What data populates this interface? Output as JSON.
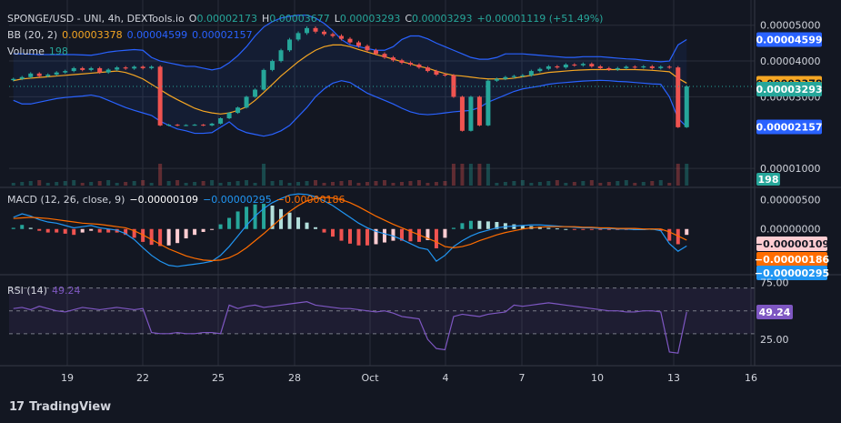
{
  "legend": {
    "symbol": "SPONGE/USD - UNI, 4h, DEXTools.io",
    "o_label": "O",
    "o": "0.00002173",
    "h_label": "H",
    "h": "0.00003677",
    "l_label": "L",
    "l": "0.00003293",
    "c_label": "C",
    "c": "0.00003293",
    "change": "+0.00001119 (+51.49%)",
    "bb_label": "BB (20, 2)",
    "bb_mid": "0.00003378",
    "bb_up": "0.00004599",
    "bb_low": "0.00002157",
    "vol_label": "Volume",
    "vol": "198",
    "macd_label": "MACD (12, 26, close, 9)",
    "macd_hist": "−0.00000109",
    "macd_line": "−0.00000295",
    "macd_signal": "−0.00000186",
    "rsi_label": "RSI (14)",
    "rsi": "49.24"
  },
  "brand": "TradingView",
  "colors": {
    "bg": "#131722",
    "up": "#26a69a",
    "down": "#ef5350",
    "band": "#2962ff",
    "basis": "#f5a623",
    "macd": "#2196f3",
    "signal": "#ff6d00",
    "rsi": "#7e57c2",
    "axis_text": "#d1d4dc",
    "grid": "#2a2e39"
  },
  "chart_data": [
    {
      "type": "candlestick",
      "title": "SPONGE/USD - UNI, 4h, DEXTools.io",
      "x_ticks": [
        "19",
        "22",
        "25",
        "28",
        "Oct",
        "4",
        "7",
        "10",
        "13",
        "16"
      ],
      "y_ticks": [
        "0.00005000",
        "0.00004000",
        "0.00003000",
        "0.00001000"
      ],
      "ylim": [
        5.2e-06,
        5.45e-05
      ],
      "price_labels": [
        {
          "name": "bb-upper",
          "value": "0.00004599"
        },
        {
          "name": "bb-basis",
          "value": "0.00003378"
        },
        {
          "name": "last-price",
          "value": "0.00003293"
        },
        {
          "name": "bb-lower",
          "value": "0.00002157"
        }
      ],
      "volume_label": "198",
      "close": [
        3.5e-05,
        3.55e-05,
        3.65e-05,
        3.58e-05,
        3.62e-05,
        3.68e-05,
        3.72e-05,
        3.8e-05,
        3.75e-05,
        3.8e-05,
        3.68e-05,
        3.76e-05,
        3.82e-05,
        3.79e-05,
        3.84e-05,
        3.8e-05,
        3.84e-05,
        2.2e-05,
        2.22e-05,
        2.2e-05,
        2.21e-05,
        2.22e-05,
        2.2e-05,
        2.25e-05,
        2.4e-05,
        2.55e-05,
        2.7e-05,
        3e-05,
        3.2e-05,
        3.75e-05,
        4e-05,
        4.3e-05,
        4.6e-05,
        4.78e-05,
        4.92e-05,
        4.82e-05,
        4.75e-05,
        4.7e-05,
        4.62e-05,
        4.52e-05,
        4.42e-05,
        4.3e-05,
        4.2e-05,
        4.1e-05,
        4.02e-05,
        3.95e-05,
        3.9e-05,
        3.82e-05,
        3.72e-05,
        3.62e-05,
        3.6e-05,
        3e-05,
        2.05e-05,
        3e-05,
        2.2e-05,
        3.45e-05,
        3.5e-05,
        3.55e-05,
        3.58e-05,
        3.6e-05,
        3.72e-05,
        3.78e-05,
        3.85e-05,
        3.82e-05,
        3.9e-05,
        3.88e-05,
        3.92e-05,
        3.85e-05,
        3.8e-05,
        3.76e-05,
        3.8e-05,
        3.84e-05,
        3.82e-05,
        3.85e-05,
        3.8e-05,
        3.84e-05,
        3.82e-05,
        2.15e-05,
        3.29e-05
      ],
      "bb_upper": [
        4.2e-05,
        4.2e-05,
        4.19e-05,
        4.18e-05,
        4.18e-05,
        4.18e-05,
        4.18e-05,
        4.18e-05,
        4.17e-05,
        4.16e-05,
        4.2e-05,
        4.25e-05,
        4.28e-05,
        4.3e-05,
        4.32e-05,
        4.3e-05,
        4.1e-05,
        4e-05,
        3.95e-05,
        3.9e-05,
        3.85e-05,
        3.85e-05,
        3.8e-05,
        3.75e-05,
        3.8e-05,
        3.95e-05,
        4.15e-05,
        4.4e-05,
        4.7e-05,
        4.95e-05,
        5.1e-05,
        5.2e-05,
        5.25e-05,
        5.28e-05,
        5.28e-05,
        5.2e-05,
        5.05e-05,
        4.85e-05,
        4.6e-05,
        4.45e-05,
        4.4e-05,
        4.35e-05,
        4.3e-05,
        4.3e-05,
        4.4e-05,
        4.6e-05,
        4.7e-05,
        4.7e-05,
        4.62e-05,
        4.5e-05,
        4.4e-05,
        4.3e-05,
        4.2e-05,
        4.1e-05,
        4.05e-05,
        4.05e-05,
        4.1e-05,
        4.2e-05,
        4.2e-05,
        4.2e-05,
        4.18e-05,
        4.16e-05,
        4.14e-05,
        4.12e-05,
        4.1e-05,
        4.1e-05,
        4.12e-05,
        4.12e-05,
        4.12e-05,
        4.1e-05,
        4.08e-05,
        4.06e-05,
        4.05e-05,
        4.02e-05,
        4e-05,
        3.98e-05,
        4e-05,
        4.45e-05,
        4.6e-05
      ],
      "bb_basis": [
        3.45e-05,
        3.5e-05,
        3.52e-05,
        3.54e-05,
        3.56e-05,
        3.58e-05,
        3.6e-05,
        3.62e-05,
        3.64e-05,
        3.66e-05,
        3.68e-05,
        3.7e-05,
        3.72e-05,
        3.68e-05,
        3.6e-05,
        3.5e-05,
        3.35e-05,
        3.2e-05,
        3.05e-05,
        2.92e-05,
        2.8e-05,
        2.68e-05,
        2.6e-05,
        2.55e-05,
        2.52e-05,
        2.55e-05,
        2.62e-05,
        2.72e-05,
        2.9e-05,
        3.12e-05,
        3.35e-05,
        3.58e-05,
        3.78e-05,
        3.98e-05,
        4.15e-05,
        4.3e-05,
        4.4e-05,
        4.45e-05,
        4.45e-05,
        4.4e-05,
        4.32e-05,
        4.25e-05,
        4.18e-05,
        4.12e-05,
        4.05e-05,
        3.98e-05,
        3.92e-05,
        3.85e-05,
        3.8e-05,
        3.72e-05,
        3.65e-05,
        3.6e-05,
        3.58e-05,
        3.55e-05,
        3.52e-05,
        3.5e-05,
        3.5e-05,
        3.5e-05,
        3.52e-05,
        3.56e-05,
        3.6e-05,
        3.64e-05,
        3.68e-05,
        3.7e-05,
        3.72e-05,
        3.74e-05,
        3.75e-05,
        3.76e-05,
        3.76e-05,
        3.76e-05,
        3.76e-05,
        3.76e-05,
        3.76e-05,
        3.75e-05,
        3.74e-05,
        3.72e-05,
        3.7e-05,
        3.52e-05,
        3.38e-05
      ],
      "bb_lower": [
        2.9e-05,
        2.8e-05,
        2.8e-05,
        2.85e-05,
        2.9e-05,
        2.95e-05,
        2.98e-05,
        3e-05,
        3.02e-05,
        3.05e-05,
        3e-05,
        2.9e-05,
        2.8e-05,
        2.7e-05,
        2.62e-05,
        2.55e-05,
        2.48e-05,
        2.32e-05,
        2.2e-05,
        2.1e-05,
        2.05e-05,
        1.98e-05,
        1.98e-05,
        2e-05,
        2.15e-05,
        2.3e-05,
        2.1e-05,
        2e-05,
        1.95e-05,
        1.9e-05,
        1.95e-05,
        2.05e-05,
        2.2e-05,
        2.45e-05,
        2.7e-05,
        3e-05,
        3.22e-05,
        3.38e-05,
        3.45e-05,
        3.4e-05,
        3.25e-05,
        3.1e-05,
        3e-05,
        2.9e-05,
        2.8e-05,
        2.68e-05,
        2.58e-05,
        2.52e-05,
        2.5e-05,
        2.52e-05,
        2.55e-05,
        2.58e-05,
        2.6e-05,
        2.62e-05,
        2.7e-05,
        2.85e-05,
        2.95e-05,
        3.05e-05,
        3.15e-05,
        3.22e-05,
        3.26e-05,
        3.3e-05,
        3.35e-05,
        3.38e-05,
        3.4e-05,
        3.42e-05,
        3.44e-05,
        3.45e-05,
        3.46e-05,
        3.45e-05,
        3.43e-05,
        3.42e-05,
        3.4e-05,
        3.38e-05,
        3.36e-05,
        3.35e-05,
        3e-05,
        2.4e-05,
        2.16e-05
      ]
    },
    {
      "type": "line",
      "title": "MACD (12, 26, close, 9)",
      "y_ticks": [
        "0.00000500",
        "0.00000000"
      ],
      "value_labels": [
        {
          "name": "macd-histogram",
          "value": "−0.00000109"
        },
        {
          "name": "macd-signal",
          "value": "−0.00000186"
        },
        {
          "name": "macd-line",
          "value": "−0.00000295"
        }
      ],
      "ylim": [
        -7.5e-06,
        6.8e-06
      ],
      "macd": [
        2e-06,
        2.6e-06,
        2.2e-06,
        1.6e-06,
        1.2e-06,
        1e-06,
        6e-07,
        2e-07,
        4e-07,
        6e-07,
        2e-07,
        0.0,
        -2e-07,
        -8e-07,
        -1.8e-06,
        -3.2e-06,
        -4.5e-06,
        -5.5e-06,
        -6.2e-06,
        -6.4e-06,
        -6.2e-06,
        -6e-06,
        -5.8e-06,
        -5.5e-06,
        -4.5e-06,
        -3e-06,
        -1.2e-06,
        6e-07,
        2.2e-06,
        3.5e-06,
        4.5e-06,
        5.2e-06,
        5.8e-06,
        6e-06,
        5.9e-06,
        5.5e-06,
        4.8e-06,
        4e-06,
        3e-06,
        2e-06,
        1e-06,
        2e-07,
        -4e-07,
        -8e-07,
        -1.2e-06,
        -1.8e-06,
        -2.5e-06,
        -3.2e-06,
        -3.5e-06,
        -5.5e-06,
        -4.5e-06,
        -3e-06,
        -2e-06,
        -1.2e-06,
        -6e-07,
        -2e-07,
        2e-07,
        4e-07,
        5e-07,
        6e-07,
        7e-07,
        7e-07,
        6e-07,
        5e-07,
        4e-07,
        3e-07,
        2e-07,
        2e-07,
        1e-07,
        1e-07,
        0.0,
        0.0,
        -1e-07,
        -1e-07,
        0.0,
        -3e-07,
        -2.5e-06,
        -3.8e-06,
        -2.9e-06
      ],
      "signal": [
        1.8e-06,
        1.9e-06,
        2e-06,
        1.9e-06,
        1.8e-06,
        1.6e-06,
        1.4e-06,
        1.2e-06,
        1e-06,
        9e-07,
        8e-07,
        6e-07,
        4e-07,
        2e-07,
        -3e-07,
        -1e-06,
        -1.8e-06,
        -2.6e-06,
        -3.4e-06,
        -4e-06,
        -4.6e-06,
        -5e-06,
        -5.3e-06,
        -5.4e-06,
        -5.3e-06,
        -4.9e-06,
        -4.2e-06,
        -3.2e-06,
        -2e-06,
        -8e-07,
        5e-07,
        1.8e-06,
        3e-06,
        4e-06,
        4.8e-06,
        5.2e-06,
        5.4e-06,
        5.3e-06,
        5e-06,
        4.5e-06,
        3.8e-06,
        3e-06,
        2.2e-06,
        1.5e-06,
        8e-07,
        2e-07,
        -4e-07,
        -1e-06,
        -1.6e-06,
        -2.2e-06,
        -3e-06,
        -3.2e-06,
        -3e-06,
        -2.6e-06,
        -2e-06,
        -1.5e-06,
        -1e-06,
        -6e-07,
        -3e-07,
        0.0,
        2e-07,
        3e-07,
        4e-07,
        4e-07,
        4e-07,
        4e-07,
        3e-07,
        3e-07,
        2e-07,
        2e-07,
        1e-07,
        1e-07,
        1e-07,
        0.0,
        0.0,
        0.0,
        -5e-07,
        -1.2e-06,
        -1.9e-06
      ]
    },
    {
      "type": "line",
      "title": "RSI (14)",
      "y_ticks": [
        "75.00",
        "25.00"
      ],
      "ylim": [
        2,
        80
      ],
      "levels": [
        70,
        50,
        30
      ],
      "value_label": "49.24",
      "values": [
        52,
        53,
        51,
        54,
        52,
        50,
        49,
        51,
        53,
        52,
        51,
        52,
        53,
        52,
        51,
        52,
        31,
        30,
        30,
        31,
        30,
        30,
        31,
        31,
        30,
        55,
        52,
        54,
        55,
        53,
        54,
        55,
        56,
        57,
        58,
        55,
        54,
        53,
        52,
        52,
        51,
        50,
        49,
        50,
        48,
        45,
        44,
        43,
        25,
        17,
        16,
        45,
        47,
        46,
        45,
        47,
        48,
        49,
        55,
        54,
        55,
        56,
        57,
        56,
        55,
        54,
        53,
        52,
        51,
        50,
        50,
        49,
        49,
        50,
        50,
        49,
        14,
        13,
        49
      ]
    }
  ]
}
